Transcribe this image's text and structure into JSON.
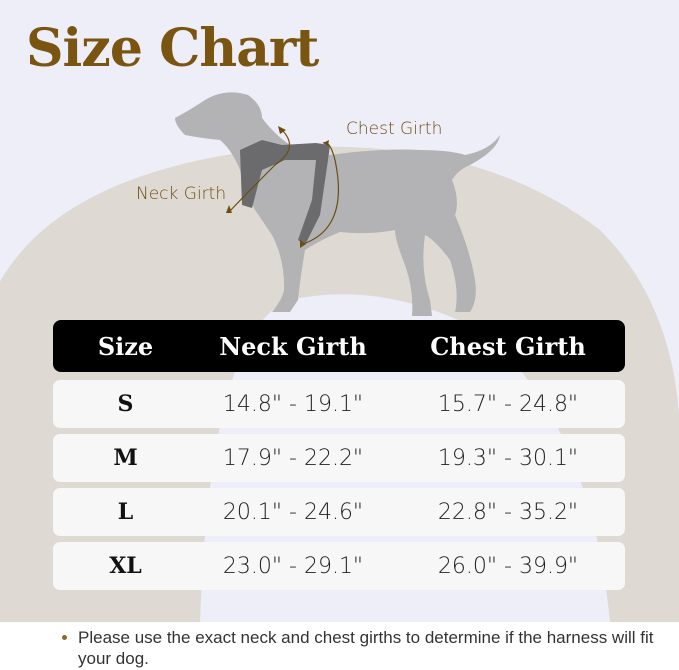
{
  "title": "Size Chart",
  "diagram": {
    "neck_label": "Neck Girth",
    "chest_label": "Chest Girth"
  },
  "table": {
    "headers": [
      "Size",
      "Neck Girth",
      "Chest Girth"
    ],
    "rows": [
      {
        "size": "S",
        "neck": "14.8\" - 19.1\"",
        "chest": "15.7\" - 24.8\""
      },
      {
        "size": "M",
        "neck": "17.9\" - 22.2\"",
        "chest": "19.3\" - 30.1\""
      },
      {
        "size": "L",
        "neck": "20.1\" - 24.6\"",
        "chest": "22.8\" - 35.2\""
      },
      {
        "size": "XL",
        "neck": "23.0\" - 29.1\"",
        "chest": "26.0\" - 39.9\""
      }
    ]
  },
  "note": "Please use the exact neck and chest girths to determine if the harness will fit your dog.",
  "colors": {
    "title": "#7a5512",
    "background": "#edeef8",
    "arc": "#dedad3",
    "header": "#000000",
    "dog": "#b3b3b5",
    "harness": "#6b6b6d"
  }
}
